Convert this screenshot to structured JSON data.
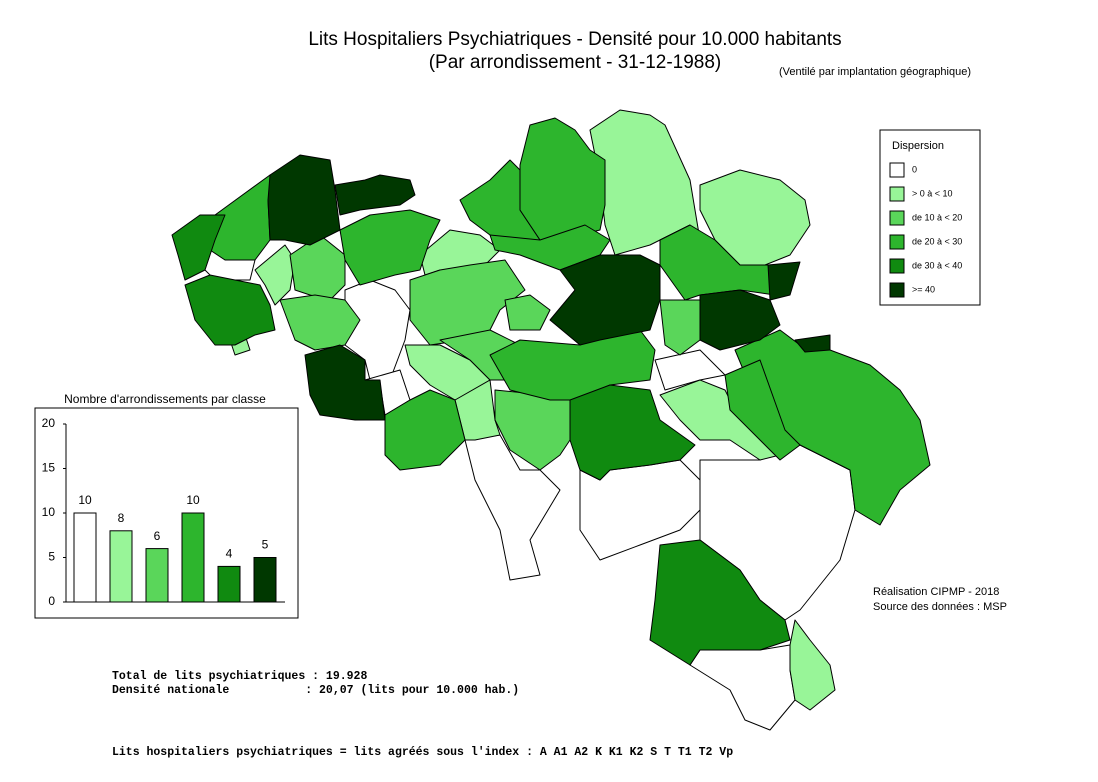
{
  "title": "Lits Hospitaliers Psychiatriques  - Densité pour 10.000 habitants",
  "subtitle": "(Par arrondissement - 31-12-1988)",
  "note": "(Ventilé par implantation géographique)",
  "legend": {
    "title": "Dispersion",
    "items": [
      {
        "label": "0",
        "color": "#ffffff"
      },
      {
        "label": "> 0 à < 10",
        "color": "#98f598"
      },
      {
        "label": "de 10 à < 20",
        "color": "#5ad65a"
      },
      {
        "label": "de 20 à < 30",
        "color": "#2db52d"
      },
      {
        "label": "de 30 à < 40",
        "color": "#108a10"
      },
      {
        "label": ">= 40",
        "color": "#003800"
      }
    ]
  },
  "credits": [
    "Réalisation CIPMP - 2018",
    "Source des données : MSP"
  ],
  "totals": [
    "Total de lits psychiatriques : 19.928",
    "Densité nationale           : 20,07 (lits pour 10.000 hab.)"
  ],
  "footnote": "Lits hospitaliers psychiatriques = lits agréés sous l'index : A A1 A2 K K1 K2 S T T1 T2 Vp",
  "chart_data": {
    "type": "bar",
    "title": "Nombre d'arrondissements par classe",
    "categories": [
      null,
      null,
      null,
      null,
      null,
      null
    ],
    "values": [
      10,
      8,
      6,
      10,
      4,
      5
    ],
    "colors": [
      "#ffffff",
      "#98f598",
      "#5ad65a",
      "#2db52d",
      "#108a10",
      "#003800"
    ],
    "ylim": [
      0,
      20
    ],
    "yticks": [
      0,
      5,
      10,
      15,
      20
    ]
  }
}
